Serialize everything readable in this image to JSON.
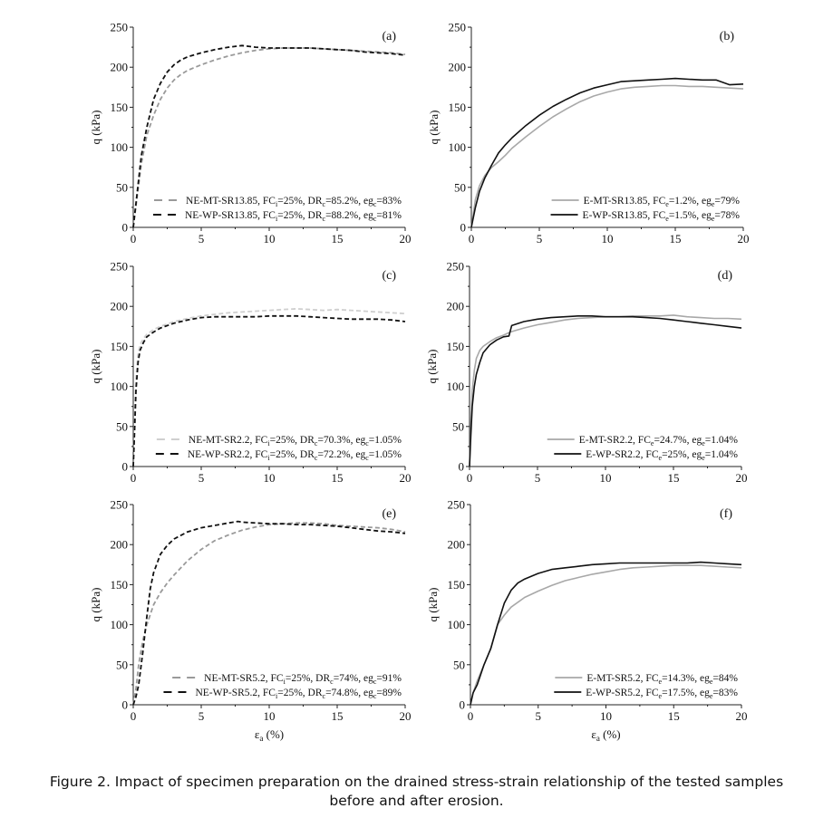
{
  "figure": {
    "caption_line1": "Figure 2. Impact of specimen preparation on the drained stress-strain relationship of the tested samples",
    "caption_line2": "before and after erosion.",
    "shared_xlabel": "εa (%)",
    "shared_ylabel": "q (kPa)"
  },
  "colors": {
    "mt_dashed": "#9a9a9a",
    "mt_dashed_light": "#cfcfcf",
    "wp_dashed": "#111111",
    "mt_solid": "#a8a8a8",
    "wp_solid": "#111111",
    "axis": "#222222"
  },
  "chart_data": [
    {
      "panel": "(a)",
      "type": "line",
      "xlabel": "εa (%)",
      "ylabel": "q (kPa)",
      "xlim": [
        0,
        20
      ],
      "ylim": [
        0,
        250
      ],
      "xticks": [
        0,
        5,
        10,
        15,
        20
      ],
      "yticks": [
        0,
        50,
        100,
        150,
        200,
        250
      ],
      "legend_position": "lower right",
      "series": [
        {
          "name": "NE-MT-SR13.85",
          "legend": [
            "NE-MT-SR13.85, FC",
            "i",
            "=25%, DR",
            "c",
            "=85.2%, eg",
            "c",
            "=83%"
          ],
          "style": "dashed",
          "color": "#9a9a9a",
          "x": [
            0,
            0.3,
            0.6,
            1,
            1.5,
            2,
            2.5,
            3,
            3.5,
            4,
            5,
            6,
            7,
            8,
            9,
            10,
            11,
            12,
            13,
            14,
            15,
            16,
            17,
            18,
            19,
            20
          ],
          "y": [
            0,
            40,
            80,
            115,
            140,
            160,
            174,
            184,
            191,
            196,
            203,
            209,
            214,
            218,
            221,
            223,
            224,
            224,
            224,
            223,
            222,
            221,
            220,
            219,
            218,
            216
          ]
        },
        {
          "name": "NE-WP-SR13.85",
          "legend": [
            "NE-WP-SR13.85, FC",
            "i",
            "=25%, DR",
            "c",
            "=88.2%, eg",
            "c",
            "=81%"
          ],
          "style": "dashed",
          "color": "#111111",
          "x": [
            0,
            0.3,
            0.6,
            1,
            1.5,
            2,
            2.5,
            3,
            3.5,
            4,
            5,
            6,
            7,
            8,
            9,
            10,
            11,
            12,
            13,
            14,
            15,
            16,
            17,
            18,
            19,
            20
          ],
          "y": [
            0,
            45,
            90,
            125,
            160,
            180,
            194,
            203,
            209,
            213,
            218,
            222,
            225,
            227,
            225,
            224,
            224,
            224,
            224,
            223,
            222,
            221,
            219,
            218,
            217,
            215
          ]
        }
      ]
    },
    {
      "panel": "(b)",
      "type": "line",
      "xlabel": "εa (%)",
      "ylabel": "q (kPa)",
      "xlim": [
        0,
        20
      ],
      "ylim": [
        0,
        250
      ],
      "xticks": [
        0,
        5,
        10,
        15,
        20
      ],
      "yticks": [
        0,
        50,
        100,
        150,
        200,
        250
      ],
      "legend_position": "lower right",
      "series": [
        {
          "name": "E-MT-SR13.85",
          "legend": [
            "E-MT-SR13.85, FC",
            "e",
            "=1.2%, eg",
            "e",
            "=79%"
          ],
          "style": "solid",
          "color": "#a8a8a8",
          "x": [
            0,
            0.3,
            0.6,
            1,
            1.5,
            2,
            2.5,
            3,
            4,
            5,
            6,
            7,
            8,
            9,
            10,
            11,
            12,
            13,
            14,
            15,
            16,
            17,
            18,
            19,
            20
          ],
          "y": [
            0,
            35,
            52,
            65,
            75,
            82,
            90,
            99,
            113,
            126,
            138,
            148,
            157,
            164,
            169,
            173,
            175,
            176,
            177,
            177,
            176,
            176,
            175,
            174,
            173
          ]
        },
        {
          "name": "E-WP-SR13.85",
          "legend": [
            "E-WP-SR13.85, FC",
            "e",
            "=1.5%, eg",
            "e",
            "=78%"
          ],
          "style": "solid",
          "color": "#111111",
          "x": [
            0,
            0.3,
            0.6,
            1,
            1.5,
            2,
            2.5,
            3,
            4,
            5,
            6,
            7,
            8,
            9,
            10,
            11,
            12,
            13,
            14,
            15,
            16,
            17,
            18,
            19,
            20
          ],
          "y": [
            0,
            25,
            45,
            62,
            78,
            93,
            103,
            112,
            127,
            140,
            151,
            160,
            168,
            174,
            178,
            182,
            183,
            184,
            185,
            186,
            185,
            184,
            184,
            178,
            179
          ]
        }
      ]
    },
    {
      "panel": "(c)",
      "type": "line",
      "xlabel": "εa (%)",
      "ylabel": "q (kPa)",
      "xlim": [
        0,
        20
      ],
      "ylim": [
        0,
        250
      ],
      "xticks": [
        0,
        5,
        10,
        15,
        20
      ],
      "yticks": [
        0,
        50,
        100,
        150,
        200,
        250
      ],
      "legend_position": "lower right",
      "series": [
        {
          "name": "NE-MT-SR2.2",
          "legend": [
            "NE-MT-SR2.2, FC",
            "i",
            "=25%, DR",
            "c",
            "=70.3%, eg",
            "c",
            "=1.05%"
          ],
          "style": "dashed",
          "color": "#cfcfcf",
          "x": [
            0,
            0.1,
            0.2,
            0.35,
            0.5,
            0.75,
            1,
            1.5,
            2,
            3,
            4,
            5,
            6,
            7,
            8,
            9,
            10,
            11,
            12,
            13,
            14,
            15,
            16,
            17,
            18,
            19,
            20
          ],
          "y": [
            0,
            60,
            110,
            140,
            152,
            160,
            165,
            171,
            175,
            181,
            185,
            188,
            190,
            192,
            193,
            194,
            195,
            196,
            197,
            196,
            195,
            196,
            195,
            194,
            193,
            192,
            191
          ]
        },
        {
          "name": "NE-WP-SR2.2",
          "legend": [
            "NE-WP-SR2.2, FC",
            "i",
            "=25%, DR",
            "c",
            "=72.2%, eg",
            "c",
            "=1.05%"
          ],
          "style": "dashed",
          "color": "#111111",
          "x": [
            0,
            0.1,
            0.2,
            0.35,
            0.5,
            0.75,
            1,
            1.5,
            2,
            3,
            4,
            5,
            6,
            7,
            8,
            9,
            10,
            11,
            12,
            13,
            14,
            15,
            16,
            17,
            18,
            19,
            20
          ],
          "y": [
            0,
            45,
            95,
            130,
            145,
            155,
            162,
            168,
            173,
            179,
            183,
            186,
            187,
            187,
            187,
            187,
            188,
            188,
            188,
            187,
            186,
            185,
            184,
            184,
            184,
            183,
            181
          ]
        }
      ]
    },
    {
      "panel": "(d)",
      "type": "line",
      "xlabel": "εa (%)",
      "ylabel": "q (kPa)",
      "xlim": [
        0,
        20
      ],
      "ylim": [
        0,
        250
      ],
      "xticks": [
        0,
        5,
        10,
        15,
        20
      ],
      "yticks": [
        0,
        50,
        100,
        150,
        200,
        250
      ],
      "legend_position": "lower right",
      "series": [
        {
          "name": "E-MT-SR2.2",
          "legend": [
            "E-MT-SR2.2, FC",
            "e",
            "=24.7%, eg",
            "e",
            "=1.04%"
          ],
          "style": "solid",
          "color": "#a8a8a8",
          "x": [
            0,
            0.1,
            0.2,
            0.35,
            0.5,
            0.75,
            1,
            1.5,
            2,
            2.5,
            3,
            4,
            5,
            6,
            7,
            8,
            9,
            10,
            11,
            12,
            13,
            14,
            15,
            16,
            17,
            18,
            19,
            20
          ],
          "y": [
            0,
            55,
            95,
            120,
            135,
            145,
            150,
            156,
            161,
            164,
            168,
            173,
            177,
            180,
            183,
            185,
            186,
            187,
            187,
            188,
            188,
            188,
            189,
            187,
            186,
            185,
            185,
            184
          ]
        },
        {
          "name": "E-WP-SR2.2",
          "legend": [
            "E-WP-SR2.2, FC",
            "e",
            "=25%, eg",
            "e",
            "=1.04%"
          ],
          "style": "solid",
          "color": "#111111",
          "x": [
            0,
            0.1,
            0.2,
            0.35,
            0.5,
            0.75,
            1,
            1.5,
            2,
            2.5,
            2.9,
            3.1,
            4,
            5,
            6,
            7,
            8,
            9,
            10,
            11,
            12,
            13,
            14,
            15,
            16,
            17,
            18,
            19,
            20
          ],
          "y": [
            0,
            40,
            75,
            100,
            115,
            130,
            142,
            152,
            158,
            162,
            163,
            176,
            181,
            184,
            186,
            187,
            188,
            188,
            187,
            187,
            187,
            186,
            185,
            183,
            181,
            179,
            177,
            175,
            173
          ]
        }
      ]
    },
    {
      "panel": "(e)",
      "type": "line",
      "xlabel": "εa (%)",
      "ylabel": "q (kPa)",
      "xlim": [
        0,
        20
      ],
      "ylim": [
        0,
        250
      ],
      "xticks": [
        0,
        5,
        10,
        15,
        20
      ],
      "yticks": [
        0,
        50,
        100,
        150,
        200,
        250
      ],
      "legend_position": "lower right",
      "series": [
        {
          "name": "NE-MT-SR5.2",
          "legend": [
            "NE-MT-SR5.2, FC",
            "i",
            "=25%, DR",
            "c",
            "=74%, eg",
            "c",
            "=91%"
          ],
          "style": "dashed",
          "color": "#9a9a9a",
          "x": [
            0,
            0.2,
            0.4,
            0.7,
            1,
            1.5,
            2,
            2.5,
            3,
            4,
            5,
            6,
            7,
            8,
            9,
            10,
            11,
            12,
            13,
            14,
            15,
            16,
            17,
            18,
            19,
            20
          ],
          "y": [
            0,
            20,
            50,
            80,
            100,
            125,
            140,
            152,
            162,
            180,
            194,
            205,
            212,
            218,
            222,
            225,
            226,
            227,
            227,
            226,
            224,
            223,
            222,
            221,
            219,
            216
          ]
        },
        {
          "name": "NE-WP-SR5.2",
          "legend": [
            "NE-WP-SR5.2, FC",
            "i",
            "=25%, DR",
            "c",
            "=74.8%, eg",
            "c",
            "=89%"
          ],
          "style": "dashed",
          "color": "#111111",
          "x": [
            0,
            0.2,
            0.4,
            0.7,
            1,
            1.25,
            1.5,
            2,
            2.5,
            3,
            4,
            5,
            6,
            7,
            7.7,
            8,
            9,
            10,
            11,
            12,
            13,
            14,
            15,
            16,
            17,
            18,
            19,
            20
          ],
          "y": [
            0,
            10,
            25,
            65,
            110,
            145,
            165,
            188,
            199,
            207,
            216,
            221,
            224,
            227,
            229,
            228,
            227,
            226,
            226,
            225,
            225,
            224,
            223,
            221,
            219,
            217,
            216,
            214
          ]
        }
      ]
    },
    {
      "panel": "(f)",
      "type": "line",
      "xlabel": "εa (%)",
      "ylabel": "q (kPa)",
      "xlim": [
        0,
        20
      ],
      "ylim": [
        0,
        250
      ],
      "xticks": [
        0,
        5,
        10,
        15,
        20
      ],
      "yticks": [
        0,
        50,
        100,
        150,
        200,
        250
      ],
      "legend_position": "lower right",
      "series": [
        {
          "name": "E-MT-SR5.2",
          "legend": [
            "E-MT-SR5.2, FC",
            "e",
            "=14.3%, eg",
            "e",
            "=84%"
          ],
          "style": "solid",
          "color": "#a8a8a8",
          "x": [
            0,
            0.2,
            0.5,
            1,
            1.5,
            2,
            2.5,
            3,
            4,
            5,
            6,
            7,
            8,
            9,
            10,
            11,
            12,
            13,
            14,
            15,
            16,
            17,
            18,
            19,
            20
          ],
          "y": [
            0,
            15,
            30,
            50,
            70,
            100,
            112,
            122,
            134,
            142,
            149,
            155,
            159,
            163,
            166,
            169,
            171,
            172,
            173,
            174,
            174,
            174,
            173,
            172,
            171
          ]
        },
        {
          "name": "E-WP-SR5.2",
          "legend": [
            "E-WP-SR5.2, FC",
            "e",
            "=17.5%, eg",
            "e",
            "=83%"
          ],
          "style": "solid",
          "color": "#111111",
          "x": [
            0,
            0.2,
            0.5,
            1,
            1.5,
            2,
            2.5,
            3,
            3.5,
            4,
            5,
            6,
            7,
            8,
            9,
            10,
            11,
            12,
            13,
            14,
            15,
            16,
            17,
            18,
            19,
            20
          ],
          "y": [
            0,
            15,
            25,
            50,
            70,
            100,
            127,
            143,
            152,
            157,
            164,
            169,
            171,
            173,
            175,
            176,
            177,
            177,
            177,
            177,
            177,
            177,
            178,
            177,
            176,
            175
          ]
        }
      ]
    }
  ]
}
